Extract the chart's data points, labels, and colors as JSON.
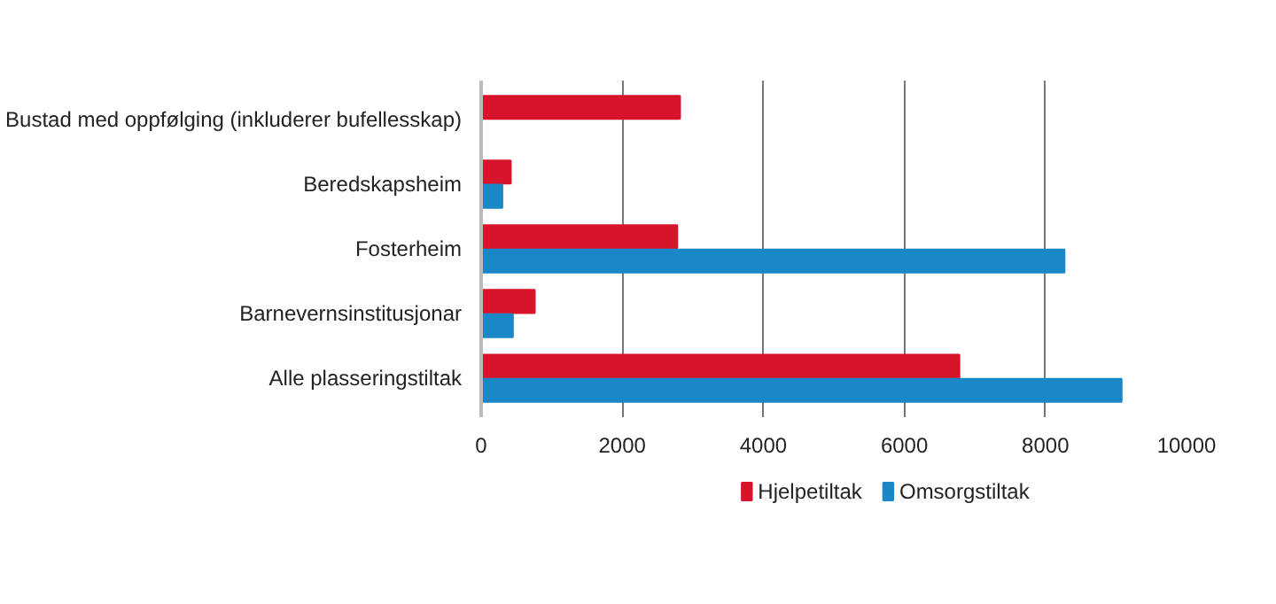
{
  "chart_data": {
    "type": "bar",
    "orientation": "horizontal",
    "categories": [
      "Bustad med oppfølging (inkluderer bufellesskap)",
      "Beredskapsheim",
      "Fosterheim",
      "Barnevernsinstitusjonar",
      "Alle plasseringstiltak"
    ],
    "series": [
      {
        "name": "Hjelpetiltak",
        "color": "#d7152a",
        "values": [
          2820,
          420,
          2780,
          760,
          6780
        ]
      },
      {
        "name": "Omsorgstiltak",
        "color": "#1a87c7",
        "values": [
          null,
          300,
          8270,
          450,
          9080
        ]
      }
    ],
    "xlim": [
      0,
      10000
    ],
    "xticks": [
      0,
      2000,
      4000,
      6000,
      8000,
      10000
    ],
    "grid": "x",
    "legend": "bottom"
  }
}
